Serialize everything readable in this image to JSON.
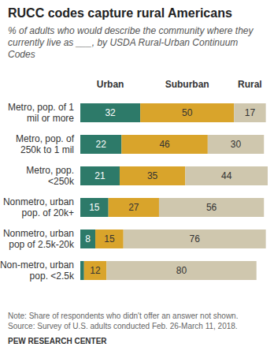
{
  "chart_data": {
    "type": "bar",
    "orientation": "horizontal",
    "stacked": true,
    "data_labels": true,
    "tick_labels": "y",
    "legend": "top",
    "grid": false,
    "title": "RUCC codes capture rural Americans",
    "subtitle": "% of adults who would describe the community where they currently live as ___, by USDA Rural-Urban Continuum Codes",
    "categories": [
      "Metro, pop. of 1 mil or more",
      "Metro, pop. of 250k to 1 mil",
      "Metro, pop. <250k",
      "Nonmetro, urban pop. of 20k+",
      "Nonmetro, urban pop of 2.5k-20k",
      "Non-metro, urban pop. <2.5k"
    ],
    "series": [
      {
        "name": "Urban",
        "color": "#2d7a69",
        "values": [
          32,
          22,
          21,
          15,
          8,
          2
        ],
        "value_labels": [
          "32",
          "22",
          "21",
          "15",
          "8",
          null
        ]
      },
      {
        "name": "Suburban",
        "color": "#d9a42b",
        "values": [
          50,
          46,
          35,
          27,
          15,
          12
        ]
      },
      {
        "name": "Rural",
        "color": "#cfc7ae",
        "values": [
          17,
          30,
          44,
          56,
          76,
          80
        ]
      }
    ],
    "xlim": [
      0,
      100
    ],
    "note": "Note: Share of respondents who didn't offer an answer not shown.",
    "source": "Source: Survey of U.S. adults conducted Feb. 26-March 11, 2018.",
    "credit": "PEW RESEARCH CENTER"
  }
}
